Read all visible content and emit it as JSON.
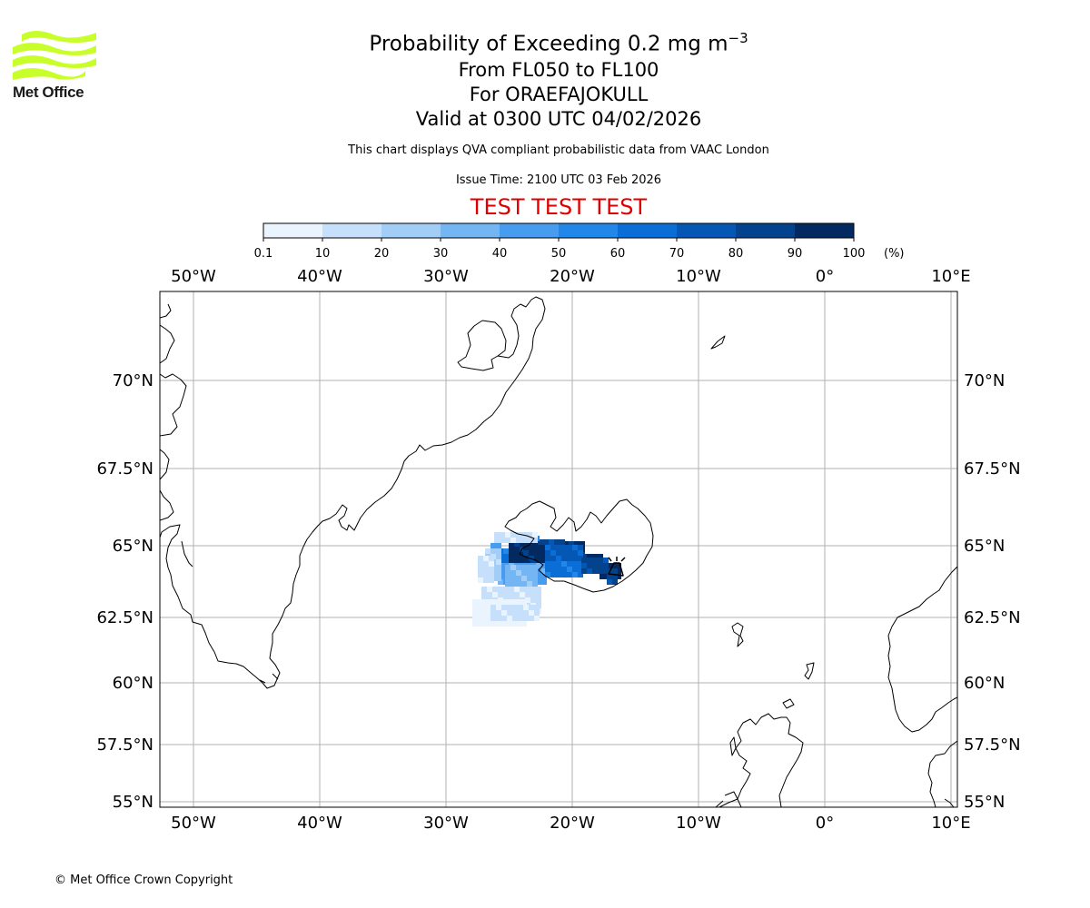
{
  "logo": {
    "text": "Met Office",
    "color": "#c8ff2a"
  },
  "header": {
    "title_main": "Probability of Exceeding 0.2 mg m",
    "title_sup": "−3",
    "title_line2": "From FL050 to FL100",
    "title_line3": "For ORAEFAJOKULL",
    "title_line4": "Valid at 0300 UTC 04/02/2026",
    "subtitle": "This chart displays QVA compliant probabilistic data from VAAC London",
    "issue_time": "Issue Time: 2100 UTC 03 Feb 2026",
    "test_banner": "TEST TEST TEST",
    "test_color": "#e00000"
  },
  "colorbar": {
    "labels": [
      "0.1",
      "10",
      "20",
      "30",
      "40",
      "50",
      "60",
      "70",
      "80",
      "90",
      "100"
    ],
    "unit": "(%)",
    "colors": [
      "#eaf4ff",
      "#c6e0fb",
      "#a2cdf7",
      "#74b5f3",
      "#479cf0",
      "#2188ea",
      "#0b6ed6",
      "#0457b5",
      "#03438d",
      "#022a60"
    ]
  },
  "map": {
    "lon_labels": [
      "50°W",
      "40°W",
      "30°W",
      "20°W",
      "10°W",
      "0°",
      "10°E"
    ],
    "lat_labels": [
      "70°N",
      "67.5°N",
      "65°N",
      "62.5°N",
      "60°N",
      "57.5°N",
      "55°N"
    ],
    "volcano": "ORAEFAJOKULL"
  },
  "footer": {
    "copyright": "© Met Office Crown Copyright"
  }
}
